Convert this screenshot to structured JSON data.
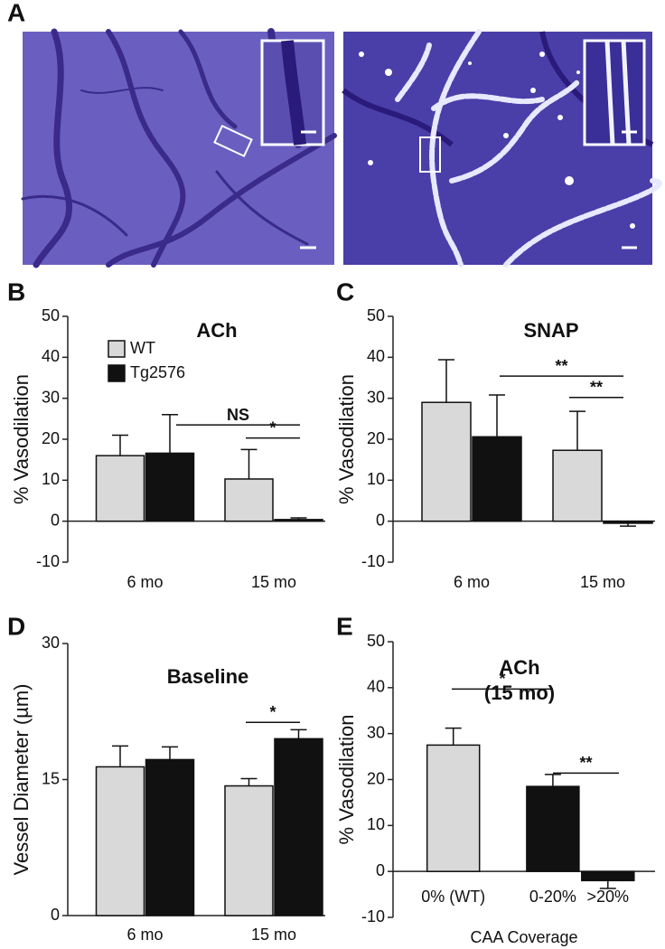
{
  "panel_a": {
    "label": "A"
  },
  "chart_data": [
    {
      "type": "bar",
      "panel": "B",
      "title": "ACh",
      "ylabel": "% Vasodilation",
      "categories": [
        "6 mo",
        "15 mo"
      ],
      "series": [
        {
          "name": "WT",
          "color": "#d9d9d9",
          "values": [
            16,
            10.3
          ],
          "errors": [
            5,
            7.2
          ]
        },
        {
          "name": "Tg2576",
          "color": "#111111",
          "values": [
            16.6,
            0.4
          ],
          "errors": [
            9.4,
            0.4
          ]
        }
      ],
      "ylim": [
        -10,
        50
      ],
      "yticks": [
        -10,
        0,
        10,
        20,
        30,
        40,
        50
      ],
      "legend": true,
      "annotations": [
        {
          "text": "NS",
          "y": 23.5
        },
        {
          "text": "*",
          "y": 20.3
        }
      ]
    },
    {
      "type": "bar",
      "panel": "C",
      "title": "SNAP",
      "ylabel": "% Vasodilation",
      "categories": [
        "6 mo",
        "15 mo"
      ],
      "series": [
        {
          "name": "WT",
          "color": "#d9d9d9",
          "values": [
            29,
            17.3
          ],
          "errors": [
            10.4,
            9.5
          ]
        },
        {
          "name": "Tg2576",
          "color": "#111111",
          "values": [
            20.6,
            -0.5
          ],
          "errors": [
            10.2,
            0.7
          ]
        }
      ],
      "ylim": [
        -10,
        50
      ],
      "yticks": [
        -10,
        0,
        10,
        20,
        30,
        40,
        50
      ],
      "legend": false,
      "annotations": [
        {
          "text": "**",
          "y": 35.4
        },
        {
          "text": "**",
          "y": 30.2
        }
      ]
    },
    {
      "type": "bar",
      "panel": "D",
      "title": "Baseline",
      "ylabel": "Vessel Diameter (µm)",
      "categories": [
        "6 mo",
        "15 mo"
      ],
      "series": [
        {
          "name": "WT",
          "color": "#d9d9d9",
          "values": [
            16.4,
            14.3
          ],
          "errors": [
            2.3,
            0.8
          ]
        },
        {
          "name": "Tg2576",
          "color": "#111111",
          "values": [
            17.2,
            19.5
          ],
          "errors": [
            1.4,
            1.0
          ]
        }
      ],
      "ylim": [
        0,
        30
      ],
      "yticks": [
        0,
        15,
        30
      ],
      "legend": false,
      "annotations": [
        {
          "text": "*",
          "y": 21.3
        }
      ]
    },
    {
      "type": "bar",
      "panel": "E",
      "title": "ACh",
      "subtitle": "(15 mo)",
      "ylabel": "% Vasodilation",
      "xlabel": "CAA Coverage",
      "categories": [
        "0% (WT)",
        "0-20%",
        ">20%"
      ],
      "values": [
        27.5,
        18.5,
        -2
      ],
      "errors": [
        3.7,
        2.6,
        1.7
      ],
      "colors": [
        "#d9d9d9",
        "#111111",
        "#111111"
      ],
      "ylim": [
        -10,
        50
      ],
      "yticks": [
        -10,
        0,
        10,
        20,
        30,
        40,
        50
      ],
      "annotations": [
        {
          "text": "*",
          "y": 39.7
        },
        {
          "text": "**",
          "y": 21.4
        }
      ]
    }
  ]
}
